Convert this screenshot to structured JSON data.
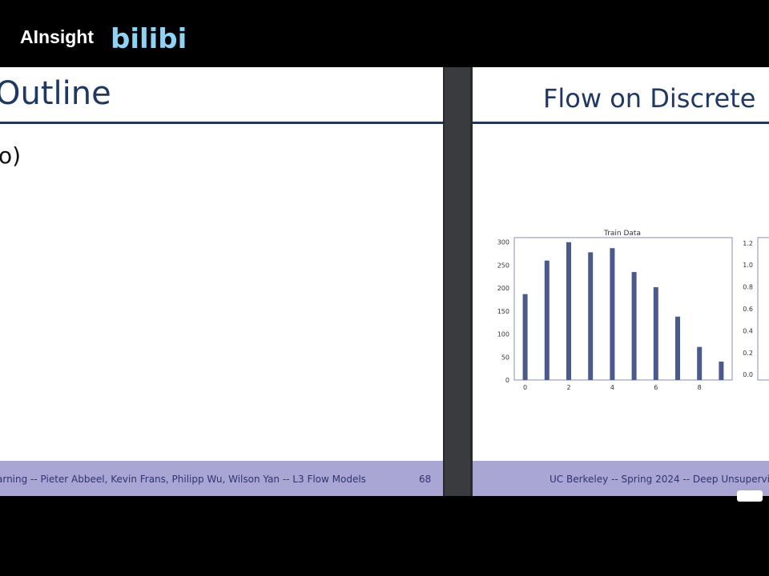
{
  "brand": {
    "name": "AInsight",
    "logo_text": "bilibili",
    "logo_color": "#8fd3f4"
  },
  "left_slide": {
    "title": "Outline",
    "body_fragment": "o)",
    "footer_text": "arning -- Pieter Abbeel, Kevin Frans, Philipp Wu, Wilson Yan -- L3 Flow Models",
    "page_number": "68"
  },
  "right_slide": {
    "title": "Flow on Discrete",
    "footer_text": "UC Berkeley -- Spring 2024 -- Deep Unsupervis"
  },
  "colors": {
    "slide_title": "#1f3864",
    "footer_bg": "#a9a6d4",
    "bar": "#4a5a8c"
  },
  "chart_data": [
    {
      "type": "bar",
      "title": "Train Data",
      "x": [
        0,
        1,
        2,
        3,
        4,
        5,
        6,
        7,
        8,
        9
      ],
      "values": [
        187,
        260,
        300,
        278,
        287,
        235,
        202,
        138,
        72,
        40
      ],
      "xticks": [
        "0",
        "2",
        "4",
        "6",
        "8"
      ],
      "yticks": [
        "0",
        "50",
        "100",
        "150",
        "200",
        "250",
        "300"
      ],
      "ylim": [
        0,
        310
      ],
      "xlim": [
        -0.5,
        9.5
      ]
    },
    {
      "type": "bar",
      "title": "",
      "yticks": [
        "0.0",
        "0.2",
        "0.4",
        "0.6",
        "0.8",
        "1.0",
        "1.2"
      ],
      "ylim": [
        -0.05,
        1.25
      ]
    }
  ]
}
